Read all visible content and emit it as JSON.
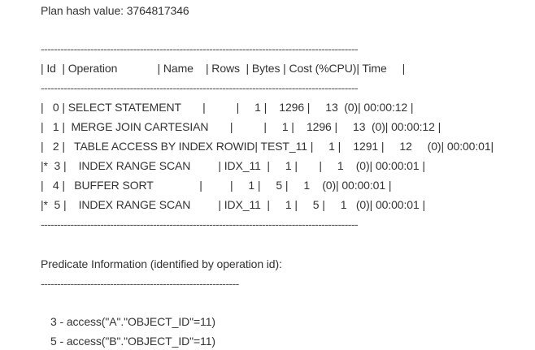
{
  "plan_hash": "Plan hash value: 3764817346",
  "separator_long": "------------------------------------------------------------------------------------------------",
  "header": "| Id  | Operation             | Name    | Rows  | Bytes | Cost (%CPU)| Time     |",
  "rows": [
    "|   0 | SELECT STATEMENT       |          |     1 |    1296 |     13  (0)| 00:00:12 |",
    "|   1 |  MERGE JOIN CARTESIAN       |          |     1 |    1296 |     13  (0)| 00:00:12 |",
    "|   2 |   TABLE ACCESS BY INDEX ROWID| TEST_11 |     1 |    1291 |     12     (0)| 00:00:01|",
    "|*  3 |    INDEX RANGE SCAN         | IDX_11  |     1 |       |     1    (0)| 00:00:01 |",
    "|   4 |   BUFFER SORT               |         |     1 |     5 |     1    (0)| 00:00:01 |",
    "|*  5 |    INDEX RANGE SCAN         | IDX_11  |     1 |     5 |     1   (0)| 00:00:01 |"
  ],
  "predicate_title": "Predicate Information (identified by operation id):",
  "separator_short": "------------------------------------------------------------",
  "predicates": [
    "3 - access(\"A\".\"OBJECT_ID\"=11)",
    "5 - access(\"B\".\"OBJECT_ID\"=11)"
  ]
}
